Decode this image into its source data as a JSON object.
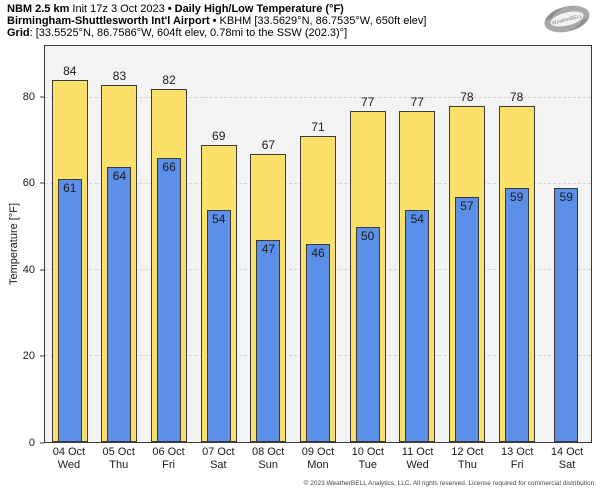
{
  "header": {
    "model": "NBM 2.5 km",
    "init": "Init 17z 3 Oct 2023",
    "sep": "•",
    "title": "Daily High/Low Temperature (°F)",
    "station": "Birmingham-Shuttlesworth Int'l Airport",
    "station_info": "KBHM [33.5629°N, 86.7535°W, 650ft elev]",
    "grid_label": "Grid",
    "grid_info": ": [33.5525°N, 86.7586°W, 604ft elev, 0.78mi to the SSW (202.3)°]",
    "logo_text": "WeatherBELL"
  },
  "chart_data": {
    "type": "bar",
    "title": "Daily High/Low Temperature (°F)",
    "ylabel": "Temperature [°F]",
    "ylim": [
      0,
      92
    ],
    "yticks": [
      0,
      20,
      40,
      60,
      80
    ],
    "grid": "horizontal dashed at yticks, legend none",
    "categories": [
      {
        "date": "04 Oct",
        "day": "Wed"
      },
      {
        "date": "05 Oct",
        "day": "Thu"
      },
      {
        "date": "06 Oct",
        "day": "Fri"
      },
      {
        "date": "07 Oct",
        "day": "Sat"
      },
      {
        "date": "08 Oct",
        "day": "Sun"
      },
      {
        "date": "09 Oct",
        "day": "Mon"
      },
      {
        "date": "10 Oct",
        "day": "Tue"
      },
      {
        "date": "11 Oct",
        "day": "Wed"
      },
      {
        "date": "12 Oct",
        "day": "Thu"
      },
      {
        "date": "13 Oct",
        "day": "Fri"
      },
      {
        "date": "14 Oct",
        "day": "Sat"
      }
    ],
    "series": [
      {
        "name": "High",
        "color": "#FBE06A",
        "values": [
          84,
          83,
          82,
          69,
          67,
          71,
          77,
          77,
          78,
          78,
          null
        ]
      },
      {
        "name": "Low",
        "color": "#5C90E8",
        "values": [
          61,
          64,
          66,
          54,
          47,
          46,
          50,
          54,
          57,
          59,
          59
        ]
      }
    ]
  },
  "footer": {
    "copyright": "© 2023 WeatherBELL Analytics, LLC. All rights reserved. License required for commercial distribution."
  }
}
